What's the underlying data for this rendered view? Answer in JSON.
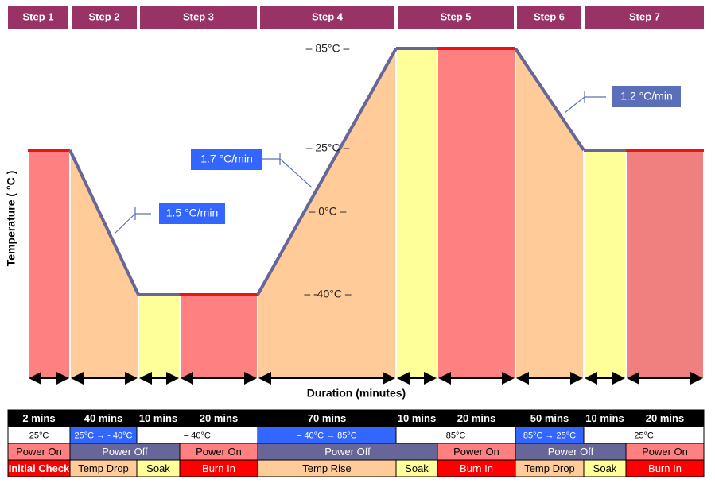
{
  "steps": [
    "Step 1",
    "Step 2",
    "Step 3",
    "Step 4",
    "Step 5",
    "Step 6",
    "Step 7"
  ],
  "y_axis_label": "Temperature ( °C )",
  "x_axis_label": "Duration (minutes)",
  "temperature_labels": [
    "– 85°C –",
    "– 25°C –",
    "– 0°C –",
    "– -40°C –"
  ],
  "rates": [
    "1.7 °C/min",
    "1.5 °C/min",
    "1.2 °C/min"
  ],
  "table": {
    "rows": [
      [
        {
          "text": "2 mins",
          "span": 1,
          "color": "#000000"
        },
        {
          "text": "40 mins",
          "span": 1,
          "color": "#000000"
        },
        {
          "text": "10 mins",
          "span": 1,
          "color": "#000000"
        },
        {
          "text": "20 mins",
          "span": 1,
          "color": "#000000"
        },
        {
          "text": "70 mins",
          "span": 1,
          "color": "#000000"
        },
        {
          "text": "10 mins",
          "span": 1,
          "color": "#000000"
        },
        {
          "text": "20 mins",
          "span": 1,
          "color": "#000000"
        },
        {
          "text": "50 mins",
          "span": 1,
          "color": "#000000"
        },
        {
          "text": "10 mins",
          "span": 1,
          "color": "#000000"
        },
        {
          "text": "20 mins",
          "span": 1,
          "color": "#000000"
        }
      ],
      [
        {
          "text": "25°C",
          "span": 1,
          "color": "#ffffff"
        },
        {
          "text": "25°C → - 40°C",
          "span": 1,
          "color": "#3366ff"
        },
        {
          "text": "– 40°C",
          "span": 2,
          "color": "#ffffff"
        },
        {
          "text": "– 40°C → 85°C",
          "span": 1,
          "color": "#3366ff"
        },
        {
          "text": "85°C",
          "span": 2,
          "color": "#ffffff"
        },
        {
          "text": "85°C → 25°C",
          "span": 1,
          "color": "#3366ff"
        },
        {
          "text": "25°C",
          "span": 2,
          "color": "#ffffff"
        }
      ],
      [
        {
          "text": "Power On",
          "span": 1,
          "color": "#ff8080"
        },
        {
          "text": "Power Off",
          "span": 2,
          "color": "#666699"
        },
        {
          "text": "Power On",
          "span": 1,
          "color": "#ff8080"
        },
        {
          "text": "Power Off",
          "span": 2,
          "color": "#666699"
        },
        {
          "text": "Power On",
          "span": 1,
          "color": "#ff8080"
        },
        {
          "text": "Power Off",
          "span": 2,
          "color": "#666699"
        },
        {
          "text": "Power On",
          "span": 1,
          "color": "#ff8080"
        }
      ],
      [
        {
          "text": "Initial Check",
          "span": 1,
          "color": "#ff0000"
        },
        {
          "text": "Temp Drop",
          "span": 1,
          "color": "#ffcc99"
        },
        {
          "text": "Soak",
          "span": 1,
          "color": "#ffff99"
        },
        {
          "text": "Burn In",
          "span": 1,
          "color": "#ff0000"
        },
        {
          "text": "Temp Rise",
          "span": 1,
          "color": "#ffcc99"
        },
        {
          "text": "Soak",
          "span": 1,
          "color": "#ffff99"
        },
        {
          "text": "Burn In",
          "span": 1,
          "color": "#ff0000"
        },
        {
          "text": "Temp Drop",
          "span": 1,
          "color": "#ffcc99"
        },
        {
          "text": "Soak",
          "span": 1,
          "color": "#ffff99"
        },
        {
          "text": "Burn In",
          "span": 1,
          "color": "#ff0000"
        }
      ]
    ]
  }
}
